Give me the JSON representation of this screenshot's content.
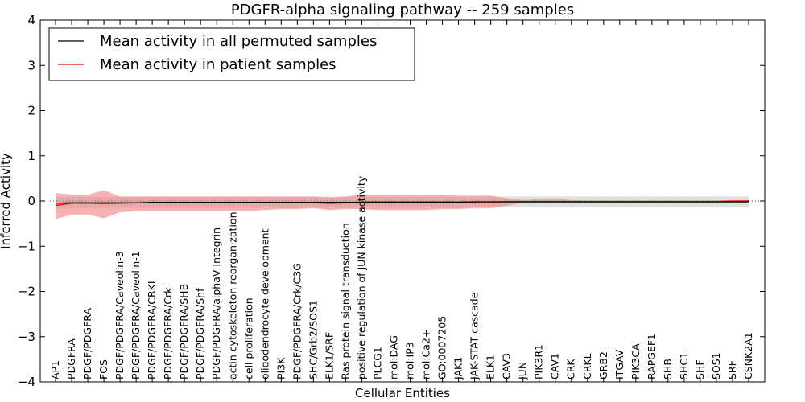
{
  "chart_data": {
    "type": "line",
    "title": "PDGFR-alpha signaling pathway -- 259 samples",
    "xlabel": "Cellular Entities",
    "ylabel": "Inferred Activity",
    "ylim": [
      -4,
      4
    ],
    "yticks": [
      "−4",
      "−3",
      "−2",
      "−1",
      "0",
      "1",
      "2",
      "3",
      "4"
    ],
    "categories": [
      "AP1",
      "PDGFRA",
      "PDGF/PDGFRA",
      "FOS",
      "PDGF/PDGFRA/Caveolin-3",
      "PDGF/PDGFRA/Caveolin-1",
      "PDGF/PDGFRA/CRKL",
      "PDGF/PDGFRA/Crk",
      "PDGF/PDGFRA/SHB",
      "PDGF/PDGFRA/Shf",
      "PDGF/PDGFRA/alphaV Integrin",
      "actin cytoskeleton reorganization",
      "cell proliferation",
      "oligodendrocyte development",
      "PI3K",
      "PDGF/PDGFRA/Crk/C3G",
      "SHC/Grb2/SOS1",
      "ELK1/SRF",
      "Ras protein signal transduction",
      "positive regulation of JUN kinase activity",
      "PLCG1",
      "mol:DAG",
      "mol:IP3",
      "mol:Ca2+",
      "GO:0007205",
      "JAK1",
      "JAK-STAT cascade",
      "ELK1",
      "CAV3",
      "JUN",
      "PIK3R1",
      "CAV1",
      "CRK",
      "CRKL",
      "GRB2",
      "ITGAV",
      "PIK3CA",
      "RAPGEF1",
      "SHB",
      "SHC1",
      "SHF",
      "SOS1",
      "SRF",
      "CSNK2A1"
    ],
    "series": [
      {
        "name": "Mean activity in all permuted samples",
        "color": "#000000",
        "band_color": "#bbbbbb",
        "values": [
          -0.05,
          -0.04,
          -0.04,
          -0.04,
          -0.04,
          -0.04,
          -0.03,
          -0.03,
          -0.03,
          -0.03,
          -0.03,
          -0.03,
          -0.03,
          -0.03,
          -0.03,
          -0.03,
          -0.03,
          -0.03,
          -0.03,
          -0.03,
          -0.03,
          -0.03,
          -0.03,
          -0.03,
          -0.03,
          -0.03,
          -0.02,
          -0.02,
          -0.02,
          -0.02,
          -0.02,
          -0.02,
          -0.02,
          -0.02,
          -0.02,
          -0.02,
          -0.02,
          -0.02,
          -0.02,
          -0.02,
          -0.02,
          -0.02,
          -0.02,
          -0.02
        ],
        "lower": [
          -0.17,
          -0.16,
          -0.16,
          -0.16,
          -0.15,
          -0.15,
          -0.15,
          -0.15,
          -0.15,
          -0.15,
          -0.15,
          -0.15,
          -0.15,
          -0.15,
          -0.15,
          -0.15,
          -0.15,
          -0.15,
          -0.15,
          -0.15,
          -0.15,
          -0.15,
          -0.15,
          -0.15,
          -0.15,
          -0.15,
          -0.14,
          -0.14,
          -0.14,
          -0.14,
          -0.14,
          -0.14,
          -0.14,
          -0.14,
          -0.14,
          -0.14,
          -0.14,
          -0.14,
          -0.14,
          -0.14,
          -0.14,
          -0.14,
          -0.14,
          -0.14
        ],
        "upper": [
          0.09,
          0.09,
          0.09,
          0.09,
          0.09,
          0.09,
          0.09,
          0.09,
          0.09,
          0.09,
          0.09,
          0.09,
          0.09,
          0.09,
          0.09,
          0.09,
          0.09,
          0.09,
          0.09,
          0.09,
          0.09,
          0.09,
          0.09,
          0.09,
          0.09,
          0.09,
          0.09,
          0.09,
          0.1,
          0.1,
          0.1,
          0.1,
          0.1,
          0.1,
          0.1,
          0.1,
          0.1,
          0.1,
          0.1,
          0.1,
          0.1,
          0.1,
          0.1,
          0.1
        ]
      },
      {
        "name": "Mean activity in patient samples",
        "color": "#ff0000",
        "band_color": "#f08080",
        "values": [
          -0.1,
          -0.05,
          -0.05,
          -0.06,
          -0.05,
          -0.04,
          -0.04,
          -0.04,
          -0.04,
          -0.04,
          -0.04,
          -0.04,
          -0.04,
          -0.04,
          -0.04,
          -0.04,
          -0.04,
          -0.05,
          -0.04,
          -0.02,
          -0.02,
          -0.02,
          -0.02,
          -0.02,
          -0.02,
          -0.02,
          -0.02,
          -0.02,
          -0.01,
          -0.01,
          -0.01,
          -0.01,
          -0.01,
          -0.01,
          -0.01,
          -0.01,
          -0.01,
          -0.01,
          -0.01,
          -0.01,
          -0.01,
          -0.01,
          0.0,
          0.0
        ],
        "lower": [
          -0.4,
          -0.3,
          -0.3,
          -0.38,
          -0.25,
          -0.22,
          -0.22,
          -0.22,
          -0.22,
          -0.22,
          -0.22,
          -0.22,
          -0.22,
          -0.2,
          -0.18,
          -0.18,
          -0.16,
          -0.2,
          -0.18,
          -0.18,
          -0.2,
          -0.2,
          -0.2,
          -0.2,
          -0.18,
          -0.18,
          -0.16,
          -0.16,
          -0.1,
          -0.04,
          -0.01,
          -0.01,
          -0.01,
          -0.01,
          -0.01,
          -0.01,
          -0.01,
          -0.01,
          -0.01,
          -0.01,
          -0.01,
          -0.01,
          -0.01,
          0.0
        ],
        "upper": [
          0.18,
          0.14,
          0.14,
          0.24,
          0.1,
          0.1,
          0.1,
          0.1,
          0.1,
          0.1,
          0.1,
          0.1,
          0.1,
          0.1,
          0.1,
          0.1,
          0.1,
          0.08,
          0.1,
          0.14,
          0.14,
          0.14,
          0.14,
          0.14,
          0.14,
          0.12,
          0.12,
          0.12,
          0.06,
          0.02,
          0.04,
          0.06,
          0.02,
          0.01,
          0.01,
          0.01,
          0.01,
          0.01,
          0.01,
          0.01,
          0.01,
          0.01,
          0.02,
          0.02
        ]
      }
    ],
    "legend_position": "top-left"
  }
}
